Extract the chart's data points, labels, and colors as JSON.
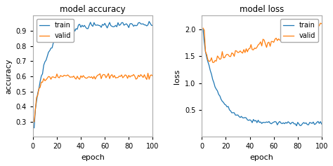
{
  "title_acc": "model accuracy",
  "title_loss": "model loss",
  "xlabel": "epoch",
  "ylabel_acc": "accuracy",
  "ylabel_loss": "loss",
  "n_epochs": 100,
  "train_color": "#1f77b4",
  "valid_color": "#ff7f0e",
  "plot_bg": "#ffffff",
  "fig_bg": "#ffffff",
  "legend_labels": [
    "train",
    "valid"
  ],
  "acc_ylim": [
    0.2,
    1.0
  ],
  "loss_ylim": [
    0.0,
    2.25
  ],
  "loss_yticks": [
    0.5,
    1.0,
    1.5,
    2.0
  ],
  "acc_yticks": [
    0.3,
    0.4,
    0.5,
    0.6,
    0.7,
    0.8,
    0.9
  ],
  "xticks": [
    0,
    20,
    40,
    60,
    80,
    100
  ]
}
